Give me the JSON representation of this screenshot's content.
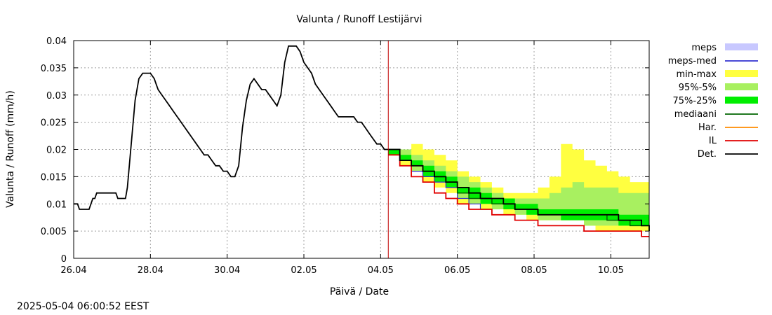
{
  "chart_data": {
    "type": "area",
    "title": "Valunta / Runoff  Lestijärvi",
    "xlabel": "Päivä / Date",
    "ylabel": "Valunta / Runoff (mm/h)",
    "xlim_days": [
      0,
      15
    ],
    "ylim": [
      0,
      0.04
    ],
    "grid": true,
    "x_ticks": [
      {
        "day": 0,
        "label": "26.04"
      },
      {
        "day": 2,
        "label": "28.04"
      },
      {
        "day": 4,
        "label": "30.04"
      },
      {
        "day": 6,
        "label": "02.05"
      },
      {
        "day": 8,
        "label": "04.05"
      },
      {
        "day": 10,
        "label": "06.05"
      },
      {
        "day": 12,
        "label": "08.05"
      },
      {
        "day": 14,
        "label": "10.05"
      }
    ],
    "y_ticks": [
      {
        "v": 0,
        "label": "0"
      },
      {
        "v": 0.005,
        "label": "0.005"
      },
      {
        "v": 0.01,
        "label": "0.01"
      },
      {
        "v": 0.015,
        "label": "0.015"
      },
      {
        "v": 0.02,
        "label": "0.02"
      },
      {
        "v": 0.025,
        "label": "0.025"
      },
      {
        "v": 0.03,
        "label": "0.03"
      },
      {
        "v": 0.035,
        "label": "0.035"
      },
      {
        "v": 0.04,
        "label": "0.04"
      }
    ],
    "forecast_start_day": 8.2,
    "legend_position": "right",
    "legend": [
      {
        "name": "meps",
        "kind": "box",
        "color": "#c8c8ff"
      },
      {
        "name": "meps-med",
        "kind": "line",
        "color": "#3030d0"
      },
      {
        "name": "min-max",
        "kind": "box",
        "color": "#ffff40"
      },
      {
        "name": "95%-5%",
        "kind": "box",
        "color": "#a8f060"
      },
      {
        "name": "75%-25%",
        "kind": "box",
        "color": "#00ee00"
      },
      {
        "name": "mediaani",
        "kind": "line",
        "color": "#006400"
      },
      {
        "name": "Har.",
        "kind": "line",
        "color": "#ff8c00"
      },
      {
        "name": "IL",
        "kind": "line",
        "color": "#e00000"
      },
      {
        "name": "Det.",
        "kind": "line",
        "color": "#000000"
      }
    ],
    "observed": {
      "name": "Det.",
      "x": [
        0,
        0.1,
        0.15,
        0.4,
        0.5,
        0.55,
        0.6,
        1.1,
        1.15,
        1.35,
        1.4,
        1.5,
        1.6,
        1.7,
        1.8,
        1.85,
        1.9,
        2.0,
        2.1,
        2.15,
        2.2,
        2.3,
        2.4,
        2.5,
        2.6,
        2.7,
        2.8,
        2.9,
        3.0,
        3.1,
        3.2,
        3.3,
        3.4,
        3.5,
        3.6,
        3.7,
        3.8,
        3.9,
        4.0,
        4.1,
        4.2,
        4.3,
        4.4,
        4.5,
        4.6,
        4.7,
        4.8,
        4.9,
        5.0,
        5.1,
        5.2,
        5.3,
        5.4,
        5.5,
        5.6,
        5.7,
        5.8,
        5.9,
        6.0,
        6.1,
        6.2,
        6.3,
        6.4,
        6.5,
        6.6,
        6.7,
        6.8,
        6.9,
        7.0,
        7.1,
        7.2,
        7.3,
        7.4,
        7.5,
        7.6,
        7.7,
        7.8,
        7.9,
        8.0,
        8.1,
        8.2
      ],
      "y": [
        0.01,
        0.01,
        0.009,
        0.009,
        0.011,
        0.011,
        0.012,
        0.012,
        0.011,
        0.011,
        0.013,
        0.021,
        0.029,
        0.033,
        0.034,
        0.034,
        0.034,
        0.034,
        0.033,
        0.032,
        0.031,
        0.03,
        0.029,
        0.028,
        0.027,
        0.026,
        0.025,
        0.024,
        0.023,
        0.022,
        0.021,
        0.02,
        0.019,
        0.019,
        0.018,
        0.017,
        0.017,
        0.016,
        0.016,
        0.015,
        0.015,
        0.017,
        0.024,
        0.029,
        0.032,
        0.033,
        0.032,
        0.031,
        0.031,
        0.03,
        0.029,
        0.028,
        0.03,
        0.036,
        0.039,
        0.039,
        0.039,
        0.038,
        0.036,
        0.035,
        0.034,
        0.032,
        0.031,
        0.03,
        0.029,
        0.028,
        0.027,
        0.026,
        0.026,
        0.026,
        0.026,
        0.026,
        0.025,
        0.025,
        0.024,
        0.023,
        0.022,
        0.021,
        0.021,
        0.02,
        0.02
      ]
    },
    "forecast": {
      "x": [
        8.2,
        8.5,
        8.8,
        9.1,
        9.4,
        9.7,
        10.0,
        10.3,
        10.6,
        10.9,
        11.2,
        11.5,
        11.8,
        12.1,
        12.4,
        12.7,
        13.0,
        13.3,
        13.6,
        13.9,
        14.2,
        14.5,
        14.8,
        15.0
      ],
      "min": [
        0.019,
        0.017,
        0.016,
        0.014,
        0.013,
        0.012,
        0.01,
        0.01,
        0.009,
        0.009,
        0.008,
        0.008,
        0.007,
        0.007,
        0.007,
        0.007,
        0.007,
        0.006,
        0.005,
        0.005,
        0.005,
        0.005,
        0.005,
        0.005
      ],
      "max": [
        0.02,
        0.02,
        0.021,
        0.02,
        0.019,
        0.018,
        0.016,
        0.015,
        0.014,
        0.013,
        0.012,
        0.012,
        0.012,
        0.013,
        0.015,
        0.021,
        0.02,
        0.018,
        0.017,
        0.016,
        0.015,
        0.014,
        0.014,
        0.014
      ],
      "p5": [
        0.019,
        0.018,
        0.016,
        0.015,
        0.014,
        0.013,
        0.011,
        0.01,
        0.01,
        0.009,
        0.009,
        0.008,
        0.008,
        0.007,
        0.007,
        0.007,
        0.007,
        0.006,
        0.006,
        0.006,
        0.006,
        0.006,
        0.006,
        0.006
      ],
      "p95": [
        0.02,
        0.02,
        0.019,
        0.018,
        0.017,
        0.016,
        0.015,
        0.014,
        0.013,
        0.012,
        0.011,
        0.011,
        0.011,
        0.011,
        0.012,
        0.013,
        0.014,
        0.013,
        0.013,
        0.013,
        0.012,
        0.012,
        0.012,
        0.012
      ],
      "p25": [
        0.019,
        0.018,
        0.017,
        0.015,
        0.014,
        0.013,
        0.012,
        0.011,
        0.01,
        0.01,
        0.009,
        0.009,
        0.008,
        0.008,
        0.008,
        0.007,
        0.007,
        0.007,
        0.007,
        0.007,
        0.006,
        0.006,
        0.006,
        0.005
      ],
      "p75": [
        0.02,
        0.019,
        0.018,
        0.017,
        0.016,
        0.015,
        0.013,
        0.013,
        0.012,
        0.011,
        0.011,
        0.01,
        0.01,
        0.009,
        0.009,
        0.009,
        0.009,
        0.009,
        0.009,
        0.009,
        0.008,
        0.008,
        0.008,
        0.007
      ],
      "median": [
        0.02,
        0.018,
        0.017,
        0.016,
        0.015,
        0.014,
        0.012,
        0.011,
        0.011,
        0.01,
        0.01,
        0.009,
        0.009,
        0.008,
        0.008,
        0.008,
        0.008,
        0.008,
        0.008,
        0.007,
        0.007,
        0.006,
        0.006,
        0.005
      ],
      "det": [
        0.02,
        0.018,
        0.017,
        0.016,
        0.015,
        0.014,
        0.013,
        0.012,
        0.011,
        0.011,
        0.01,
        0.009,
        0.009,
        0.008,
        0.008,
        0.008,
        0.008,
        0.008,
        0.008,
        0.008,
        0.007,
        0.007,
        0.006,
        0.005
      ],
      "il": [
        0.019,
        0.017,
        0.015,
        0.014,
        0.012,
        0.011,
        0.01,
        0.009,
        0.009,
        0.008,
        0.008,
        0.007,
        0.007,
        0.006,
        0.006,
        0.006,
        0.006,
        0.005,
        0.005,
        0.005,
        0.005,
        0.005,
        0.004,
        0.004
      ],
      "meps_med": [
        0.02,
        0.018,
        0.016,
        0.015,
        0.014,
        0.013,
        0.011,
        0.01,
        0.009,
        0.009
      ]
    }
  },
  "footer": {
    "timestamp": "2025-05-04 06:00:52 EEST"
  }
}
